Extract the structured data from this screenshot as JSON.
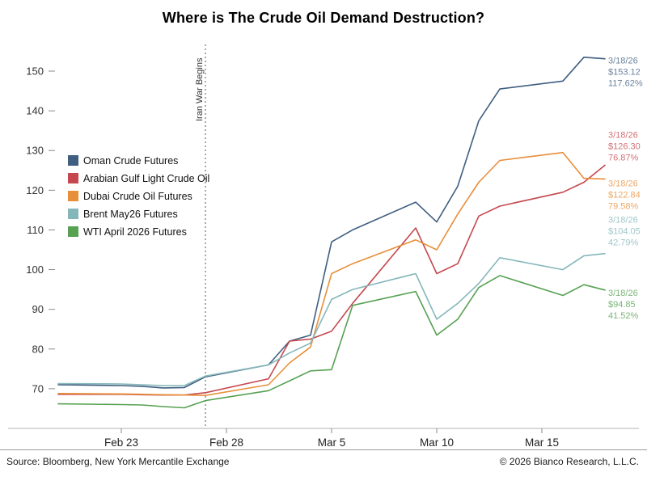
{
  "title": "Where is The Crude Oil Demand Destruction?",
  "footer": {
    "source": "Source: Bloomberg, New York Mercantile Exchange",
    "copyright": "© 2026 Bianco Research, L.L.C."
  },
  "chart_data": {
    "type": "line",
    "x_dates": [
      "Feb 20",
      "Feb 23",
      "Feb 24",
      "Feb 25",
      "Feb 26",
      "Feb 27",
      "Mar 2",
      "Mar 3",
      "Mar 4",
      "Mar 5",
      "Mar 6",
      "Mar 9",
      "Mar 10",
      "Mar 11",
      "Mar 12",
      "Mar 13",
      "Mar 16",
      "Mar 17",
      "Mar 18"
    ],
    "x_day_index": [
      0,
      3,
      4,
      5,
      6,
      7,
      10,
      11,
      12,
      13,
      14,
      17,
      18,
      19,
      20,
      21,
      24,
      25,
      26
    ],
    "x_ticks": [
      {
        "day": 3,
        "label": "Feb 23"
      },
      {
        "day": 8,
        "label": "Feb 28"
      },
      {
        "day": 13,
        "label": "Mar 5"
      },
      {
        "day": 18,
        "label": "Mar 10"
      },
      {
        "day": 23,
        "label": "Mar 15"
      }
    ],
    "y_ticks": [
      70,
      80,
      90,
      100,
      110,
      120,
      130,
      140,
      150
    ],
    "ylim": [
      60,
      157
    ],
    "grid": false,
    "legend_position": "top-left",
    "event_line": {
      "day": 7,
      "label": "Iran War Begins"
    },
    "series": [
      {
        "name": "Oman Crude Futures",
        "color": "#3f5e80",
        "values": [
          71.0,
          70.8,
          70.6,
          70.2,
          70.3,
          73.0,
          76.0,
          82.0,
          83.5,
          107.0,
          110.0,
          117.0,
          112.0,
          121.0,
          137.5,
          145.5,
          147.5,
          153.5,
          153.12
        ],
        "annotation": {
          "date": "3/18/26",
          "price": "$153.12",
          "pct": "117.62%"
        },
        "annot_dy": 6
      },
      {
        "name": "Arabian Gulf Light Crude Oil",
        "color": "#c5484e",
        "values": [
          68.6,
          68.6,
          68.5,
          68.4,
          68.4,
          69.0,
          72.5,
          82.0,
          82.5,
          84.5,
          91.5,
          110.5,
          99.0,
          101.5,
          113.5,
          116.0,
          119.5,
          122.0,
          126.3
        ],
        "annotation": {
          "date": "3/18/26",
          "price": "$126.30",
          "pct": "76.87%"
        },
        "annot_dy": -34
      },
      {
        "name": "Dubai Crude Oil Futures",
        "color": "#e78f3a",
        "values": [
          68.8,
          68.7,
          68.6,
          68.5,
          68.4,
          68.3,
          71.0,
          76.5,
          80.5,
          99.0,
          101.5,
          107.5,
          105.0,
          114.0,
          122.0,
          127.5,
          129.5,
          123.0,
          122.84
        ],
        "annotation": {
          "date": "3/18/26",
          "price": "$122.84",
          "pct": "79.58%"
        },
        "annot_dy": 9
      },
      {
        "name": "Brent May26 Futures",
        "color": "#85b7ba",
        "values": [
          71.3,
          71.2,
          71.0,
          70.8,
          70.8,
          73.2,
          76.0,
          79.0,
          81.5,
          92.5,
          95.0,
          99.0,
          87.5,
          91.5,
          96.5,
          103.0,
          100.0,
          103.5,
          104.05
        ],
        "annotation": {
          "date": "3/18/26",
          "price": "$104.05",
          "pct": "42.79%"
        },
        "annot_dy": -38
      },
      {
        "name": "WTI April 2026 Futures",
        "color": "#56a152",
        "values": [
          66.2,
          66.0,
          65.9,
          65.5,
          65.2,
          67.0,
          69.5,
          72.0,
          74.5,
          74.8,
          91.0,
          94.5,
          83.5,
          87.5,
          95.5,
          98.5,
          93.5,
          96.2,
          94.85
        ],
        "annotation": {
          "date": "3/18/26",
          "price": "$94.85",
          "pct": "41.52%"
        },
        "annot_dy": 7
      }
    ]
  }
}
